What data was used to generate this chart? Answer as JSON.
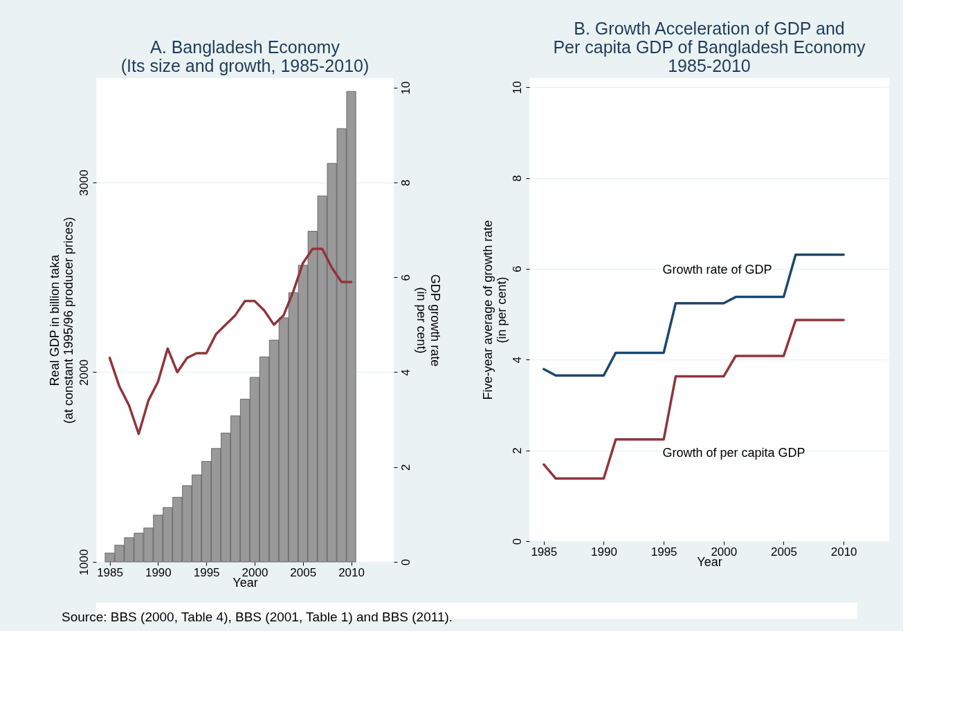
{
  "chart_data": [
    {
      "type": "bar",
      "title": "A. Bangladesh Economy\n(Its size and growth, 1985-2010)",
      "xlabel": "Year",
      "ylabel": "Real GDP in billion taka\n(at constant 1995/96 producer prices)",
      "y2label": "GDP growth rate\n(in per cent)",
      "x": [
        1985,
        1986,
        1987,
        1988,
        1989,
        1990,
        1991,
        1992,
        1993,
        1994,
        1995,
        1996,
        1997,
        1998,
        1999,
        2000,
        2001,
        2002,
        2003,
        2004,
        2005,
        2006,
        2007,
        2008,
        2009,
        2010
      ],
      "series": [
        {
          "type": "bar",
          "color": "#999999",
          "values": [
            1047,
            1088,
            1128,
            1152,
            1179,
            1247,
            1287,
            1341,
            1402,
            1459,
            1530,
            1598,
            1679,
            1770,
            1858,
            1973,
            2081,
            2169,
            2287,
            2419,
            2564,
            2743,
            2929,
            3101,
            3284,
            3480
          ]
        },
        {
          "type": "line",
          "axis": "y2",
          "color": "#90353b",
          "values": [
            4.3,
            3.7,
            3.3,
            2.7,
            3.4,
            3.8,
            4.5,
            4.0,
            4.3,
            4.4,
            4.4,
            4.8,
            5.0,
            5.2,
            5.5,
            5.5,
            5.3,
            5.0,
            5.2,
            5.7,
            6.3,
            6.6,
            6.6,
            6.2,
            5.9,
            5.9
          ]
        }
      ],
      "xlim": [
        1983.6,
        2014.4
      ],
      "xticks": [
        1985,
        1990,
        1995,
        2000,
        2005,
        2010
      ],
      "ylim": [
        1000,
        3550
      ],
      "yticks": [
        1000,
        2000,
        3000
      ],
      "y2lim": [
        0,
        10.2
      ],
      "y2ticks": [
        0,
        2,
        4,
        6,
        8,
        10
      ],
      "grid": "y",
      "legend": false,
      "annotations": [
        "Source: BBS (2000, Table 4), BBS (2001, Table 1) and BBS (2011)."
      ]
    },
    {
      "type": "line",
      "title": "B. Growth Acceleration of GDP and\nPer capita GDP of Bangladesh Economy\n1985-2010",
      "xlabel": "Year",
      "ylabel": "Five-year average of growth rate\n(in per cent)",
      "x": [
        1985,
        1986,
        1987,
        1988,
        1989,
        1990,
        1991,
        1992,
        1993,
        1994,
        1995,
        1996,
        1997,
        1998,
        1999,
        2000,
        2001,
        2002,
        2003,
        2004,
        2005,
        2006,
        2007,
        2008,
        2009,
        2010
      ],
      "series": [
        {
          "color": "#1a476f",
          "values": [
            3.79,
            3.65,
            3.65,
            3.65,
            3.65,
            3.65,
            4.15,
            4.15,
            4.15,
            4.15,
            4.15,
            5.24,
            5.24,
            5.24,
            5.24,
            5.24,
            5.38,
            5.38,
            5.38,
            5.38,
            5.38,
            6.31,
            6.31,
            6.31,
            6.31,
            6.31
          ]
        },
        {
          "color": "#90353b",
          "values": [
            1.69,
            1.38,
            1.38,
            1.38,
            1.38,
            1.38,
            2.24,
            2.24,
            2.24,
            2.24,
            2.24,
            3.63,
            3.63,
            3.63,
            3.63,
            3.63,
            4.08,
            4.08,
            4.08,
            4.08,
            4.08,
            4.87,
            4.87,
            4.87,
            4.87,
            4.87
          ]
        }
      ],
      "xlim": [
        1983.8,
        2013.8
      ],
      "xticks": [
        1985,
        1990,
        1995,
        2000,
        2005,
        2010
      ],
      "ylim": [
        0,
        10.2
      ],
      "yticks": [
        0,
        2,
        4,
        6,
        8,
        10
      ],
      "grid": "y",
      "legend": false,
      "annotations": [
        "Growth rate of GDP",
        "Growth of per capita GDP"
      ]
    }
  ]
}
